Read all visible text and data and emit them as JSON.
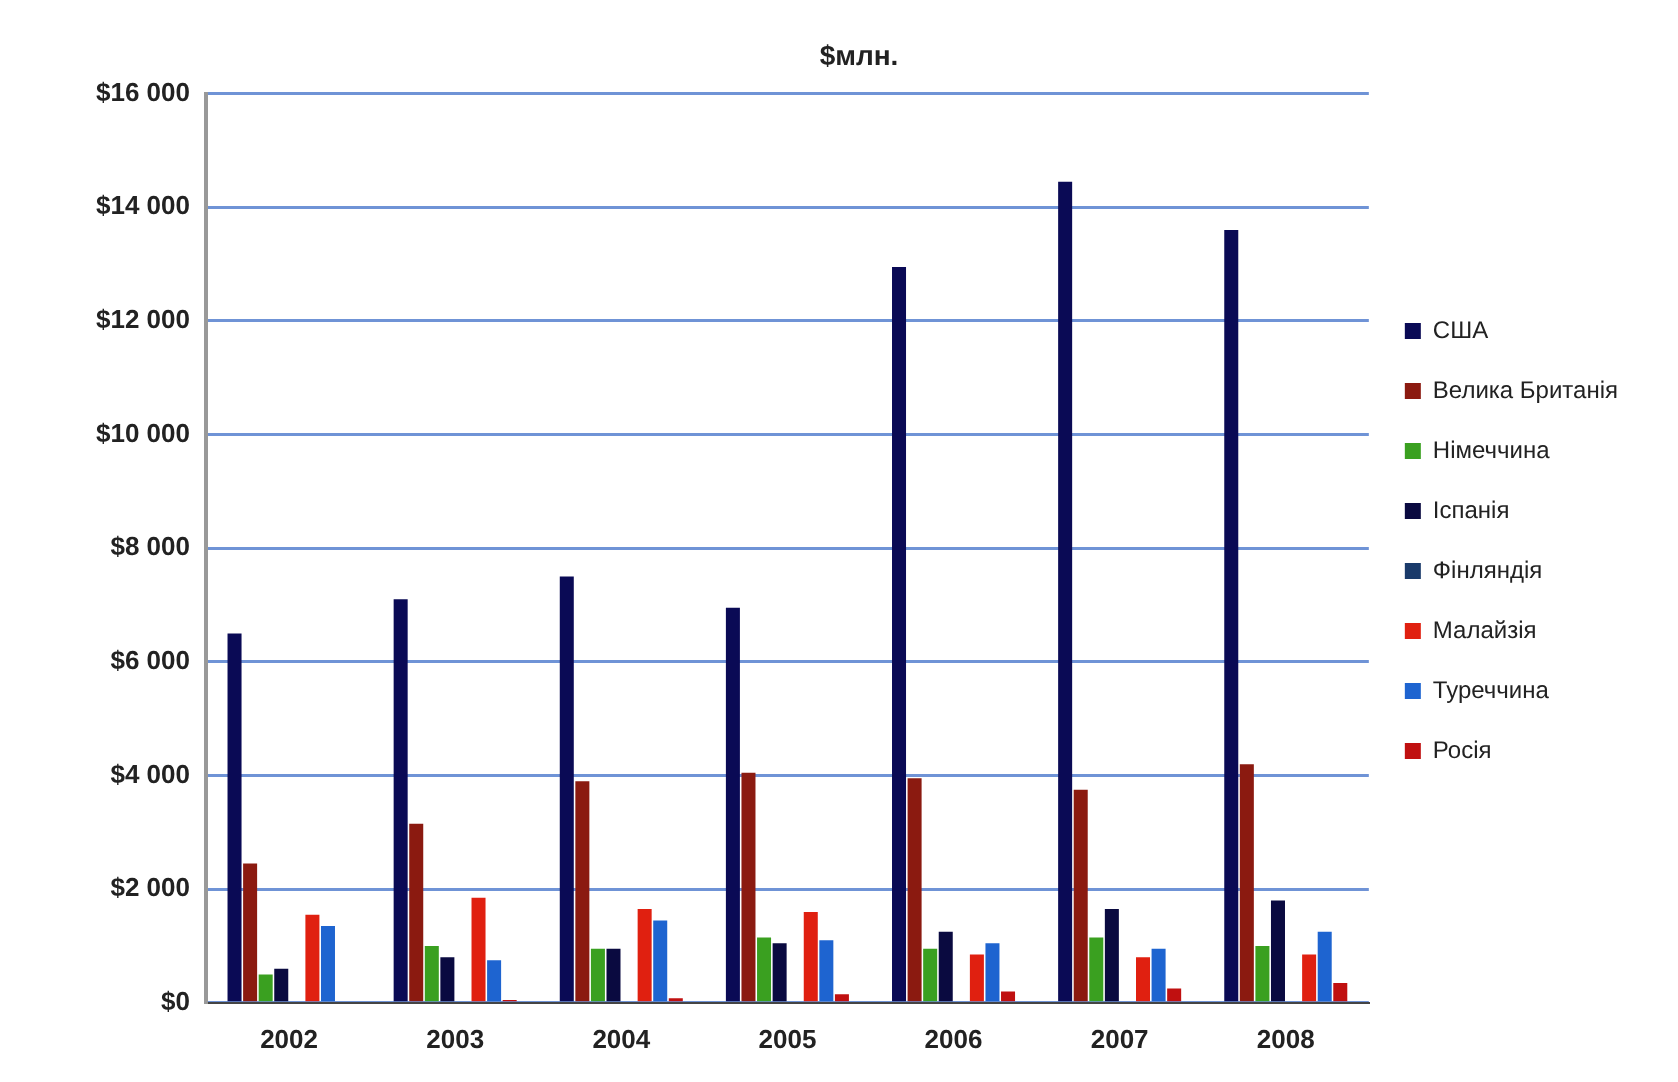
{
  "chart_data": {
    "type": "bar",
    "title": "$млн.",
    "categories": [
      "2002",
      "2003",
      "2004",
      "2005",
      "2006",
      "2007",
      "2008"
    ],
    "series": [
      {
        "name": "США",
        "color": "#0a0a55",
        "values": [
          6500,
          7100,
          7500,
          6950,
          12950,
          14450,
          13600
        ]
      },
      {
        "name": "Велика Британія",
        "color": "#8b1a10",
        "values": [
          2450,
          3150,
          3900,
          4050,
          3950,
          3750,
          4200
        ]
      },
      {
        "name": "Німеччина",
        "color": "#3aa020",
        "values": [
          500,
          1000,
          950,
          1150,
          950,
          1150,
          1000
        ]
      },
      {
        "name": "Іспанія",
        "color": "#0a0a40",
        "values": [
          600,
          800,
          950,
          1050,
          1250,
          1650,
          1800
        ]
      },
      {
        "name": "Фінляндія",
        "color": "#1a3a6a",
        "values": [
          0,
          0,
          0,
          0,
          0,
          0,
          0
        ]
      },
      {
        "name": "Малайзія",
        "color": "#e02010",
        "values": [
          1550,
          1850,
          1650,
          1600,
          850,
          800,
          850
        ]
      },
      {
        "name": "Туреччина",
        "color": "#1e64d0",
        "values": [
          1350,
          750,
          1450,
          1100,
          1050,
          950,
          1250
        ]
      },
      {
        "name": "Росія",
        "color": "#c01010",
        "values": [
          0,
          50,
          80,
          150,
          200,
          250,
          350
        ]
      }
    ],
    "ylim": [
      0,
      16000
    ],
    "yticks": [
      {
        "value": 0,
        "label": "$0"
      },
      {
        "value": 2000,
        "label": "$2 000"
      },
      {
        "value": 4000,
        "label": "$4 000"
      },
      {
        "value": 6000,
        "label": "$6 000"
      },
      {
        "value": 8000,
        "label": "$8 000"
      },
      {
        "value": 10000,
        "label": "$10 000"
      },
      {
        "value": 12000,
        "label": "$12 000"
      },
      {
        "value": 14000,
        "label": "$14 000"
      },
      {
        "value": 16000,
        "label": "$16 000"
      }
    ],
    "grid": "y",
    "legend": "right"
  }
}
